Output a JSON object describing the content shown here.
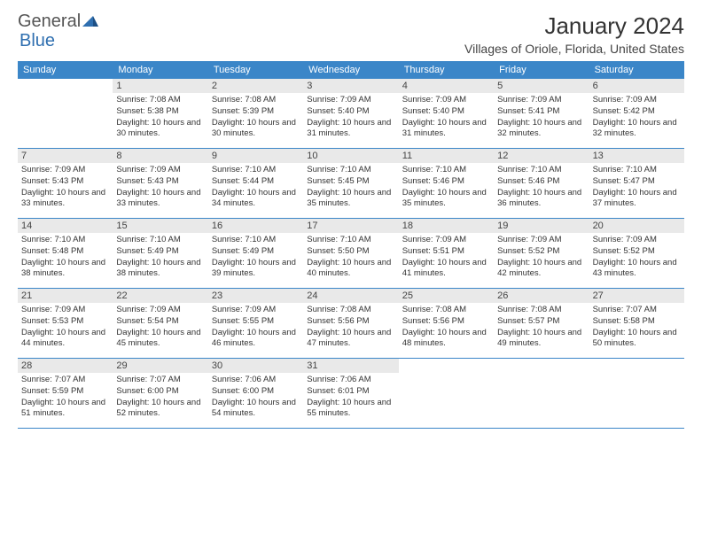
{
  "brand": {
    "text1": "General",
    "text2": "Blue"
  },
  "title": "January 2024",
  "location": "Villages of Oriole, Florida, United States",
  "colors": {
    "header_bg": "#3b86c8",
    "header_text": "#ffffff",
    "daynum_bg": "#e9e9e9",
    "border": "#3b86c8",
    "brand_accent": "#2f6fb0"
  },
  "weekdays": [
    "Sunday",
    "Monday",
    "Tuesday",
    "Wednesday",
    "Thursday",
    "Friday",
    "Saturday"
  ],
  "weeks": [
    [
      {
        "n": "",
        "sr": "",
        "ss": "",
        "dl": ""
      },
      {
        "n": "1",
        "sr": "7:08 AM",
        "ss": "5:38 PM",
        "dl": "10 hours and 30 minutes."
      },
      {
        "n": "2",
        "sr": "7:08 AM",
        "ss": "5:39 PM",
        "dl": "10 hours and 30 minutes."
      },
      {
        "n": "3",
        "sr": "7:09 AM",
        "ss": "5:40 PM",
        "dl": "10 hours and 31 minutes."
      },
      {
        "n": "4",
        "sr": "7:09 AM",
        "ss": "5:40 PM",
        "dl": "10 hours and 31 minutes."
      },
      {
        "n": "5",
        "sr": "7:09 AM",
        "ss": "5:41 PM",
        "dl": "10 hours and 32 minutes."
      },
      {
        "n": "6",
        "sr": "7:09 AM",
        "ss": "5:42 PM",
        "dl": "10 hours and 32 minutes."
      }
    ],
    [
      {
        "n": "7",
        "sr": "7:09 AM",
        "ss": "5:43 PM",
        "dl": "10 hours and 33 minutes."
      },
      {
        "n": "8",
        "sr": "7:09 AM",
        "ss": "5:43 PM",
        "dl": "10 hours and 33 minutes."
      },
      {
        "n": "9",
        "sr": "7:10 AM",
        "ss": "5:44 PM",
        "dl": "10 hours and 34 minutes."
      },
      {
        "n": "10",
        "sr": "7:10 AM",
        "ss": "5:45 PM",
        "dl": "10 hours and 35 minutes."
      },
      {
        "n": "11",
        "sr": "7:10 AM",
        "ss": "5:46 PM",
        "dl": "10 hours and 35 minutes."
      },
      {
        "n": "12",
        "sr": "7:10 AM",
        "ss": "5:46 PM",
        "dl": "10 hours and 36 minutes."
      },
      {
        "n": "13",
        "sr": "7:10 AM",
        "ss": "5:47 PM",
        "dl": "10 hours and 37 minutes."
      }
    ],
    [
      {
        "n": "14",
        "sr": "7:10 AM",
        "ss": "5:48 PM",
        "dl": "10 hours and 38 minutes."
      },
      {
        "n": "15",
        "sr": "7:10 AM",
        "ss": "5:49 PM",
        "dl": "10 hours and 38 minutes."
      },
      {
        "n": "16",
        "sr": "7:10 AM",
        "ss": "5:49 PM",
        "dl": "10 hours and 39 minutes."
      },
      {
        "n": "17",
        "sr": "7:10 AM",
        "ss": "5:50 PM",
        "dl": "10 hours and 40 minutes."
      },
      {
        "n": "18",
        "sr": "7:09 AM",
        "ss": "5:51 PM",
        "dl": "10 hours and 41 minutes."
      },
      {
        "n": "19",
        "sr": "7:09 AM",
        "ss": "5:52 PM",
        "dl": "10 hours and 42 minutes."
      },
      {
        "n": "20",
        "sr": "7:09 AM",
        "ss": "5:52 PM",
        "dl": "10 hours and 43 minutes."
      }
    ],
    [
      {
        "n": "21",
        "sr": "7:09 AM",
        "ss": "5:53 PM",
        "dl": "10 hours and 44 minutes."
      },
      {
        "n": "22",
        "sr": "7:09 AM",
        "ss": "5:54 PM",
        "dl": "10 hours and 45 minutes."
      },
      {
        "n": "23",
        "sr": "7:09 AM",
        "ss": "5:55 PM",
        "dl": "10 hours and 46 minutes."
      },
      {
        "n": "24",
        "sr": "7:08 AM",
        "ss": "5:56 PM",
        "dl": "10 hours and 47 minutes."
      },
      {
        "n": "25",
        "sr": "7:08 AM",
        "ss": "5:56 PM",
        "dl": "10 hours and 48 minutes."
      },
      {
        "n": "26",
        "sr": "7:08 AM",
        "ss": "5:57 PM",
        "dl": "10 hours and 49 minutes."
      },
      {
        "n": "27",
        "sr": "7:07 AM",
        "ss": "5:58 PM",
        "dl": "10 hours and 50 minutes."
      }
    ],
    [
      {
        "n": "28",
        "sr": "7:07 AM",
        "ss": "5:59 PM",
        "dl": "10 hours and 51 minutes."
      },
      {
        "n": "29",
        "sr": "7:07 AM",
        "ss": "6:00 PM",
        "dl": "10 hours and 52 minutes."
      },
      {
        "n": "30",
        "sr": "7:06 AM",
        "ss": "6:00 PM",
        "dl": "10 hours and 54 minutes."
      },
      {
        "n": "31",
        "sr": "7:06 AM",
        "ss": "6:01 PM",
        "dl": "10 hours and 55 minutes."
      },
      {
        "n": "",
        "sr": "",
        "ss": "",
        "dl": ""
      },
      {
        "n": "",
        "sr": "",
        "ss": "",
        "dl": ""
      },
      {
        "n": "",
        "sr": "",
        "ss": "",
        "dl": ""
      }
    ]
  ],
  "labels": {
    "sunrise": "Sunrise:",
    "sunset": "Sunset:",
    "daylight": "Daylight:"
  }
}
